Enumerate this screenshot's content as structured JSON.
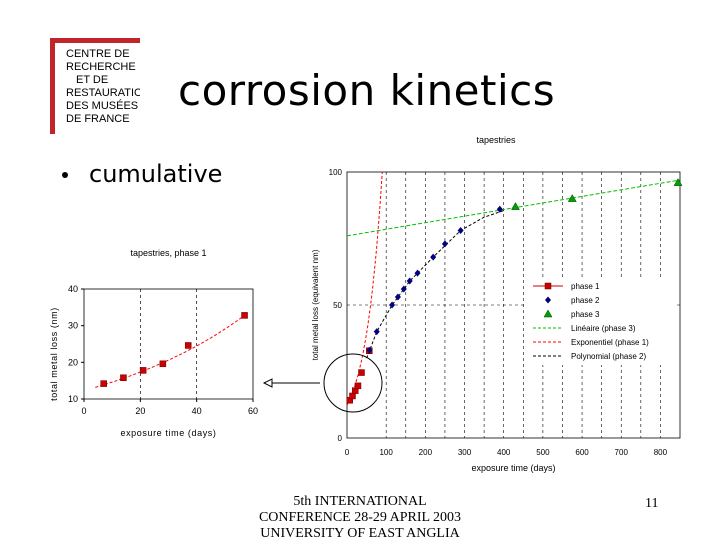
{
  "slide": {
    "title": "corrosion kinetics",
    "bullet": "cumulative",
    "footer": [
      "5th INTERNATIONAL",
      "CONFERENCE 28-29 APRIL 2003",
      "UNIVERSITY OF EAST ANGLIA"
    ],
    "page_number": "11",
    "logo_lines": [
      "CENTRE DE",
      "RECHERCHE",
      "ET DE",
      "RESTAURATION",
      "DES MUSÉES",
      "DE FRANCE"
    ],
    "colors": {
      "logo_red": "#C0252B",
      "phase1": "#CC0000",
      "phase2": "#000080",
      "phase3": "#00A000",
      "fit_linear": "#00C000",
      "fit_exp": "#FF0000",
      "fit_poly": "#000000"
    }
  },
  "chart_data": [
    {
      "type": "scatter",
      "title": "tapestries, phase 1",
      "xlabel": "exposure time (days)",
      "ylabel": "total metal loss (nm)",
      "xlim": [
        0,
        60
      ],
      "ylim": [
        10,
        40
      ],
      "xticks": [
        "0",
        "20",
        "40",
        "60"
      ],
      "yticks": [
        "10",
        "20",
        "30",
        "40"
      ],
      "grid": "vertical dashed",
      "series": [
        {
          "name": "",
          "marker": "square",
          "color": "#CC0000",
          "points": [
            [
              7,
              14.2
            ],
            [
              14,
              15.8
            ],
            [
              21,
              17.8
            ],
            [
              28,
              19.6
            ],
            [
              37,
              24.6
            ],
            [
              57,
              32.8
            ]
          ]
        }
      ],
      "fit": {
        "kind": "exponential",
        "style": "dashed",
        "color": "#FF0000",
        "a": 12.3,
        "b": 0.0172
      }
    },
    {
      "type": "scatter",
      "title": "tapestries",
      "xlabel": "exposure time (days)",
      "ylabel": "total metal loss (equivalent nm)",
      "xlim": [
        0,
        850
      ],
      "ylim": [
        0,
        100
      ],
      "xticks": [
        "0",
        "100",
        "200",
        "300",
        "400",
        "500",
        "600",
        "700",
        "800"
      ],
      "yticks": [
        "0",
        "50",
        "100"
      ],
      "grid": "vertical dashed",
      "legend_position": "right",
      "series": [
        {
          "name": "phase 1",
          "marker": "square",
          "color": "#CC0000",
          "points": [
            [
              7,
              14.2
            ],
            [
              14,
              15.8
            ],
            [
              21,
              17.8
            ],
            [
              28,
              19.6
            ],
            [
              37,
              24.6
            ],
            [
              57,
              32.8
            ]
          ]
        },
        {
          "name": "phase 2",
          "marker": "diamond",
          "color": "#000080",
          "points": [
            [
              57,
              33
            ],
            [
              76,
              40
            ],
            [
              115,
              50
            ],
            [
              130,
              53
            ],
            [
              145,
              56
            ],
            [
              160,
              59
            ],
            [
              180,
              62
            ],
            [
              220,
              68
            ],
            [
              250,
              73
            ],
            [
              290,
              78
            ],
            [
              390,
              86
            ]
          ]
        },
        {
          "name": "phase 3",
          "marker": "triangle",
          "color": "#00A000",
          "points": [
            [
              430,
              87
            ],
            [
              575,
              90
            ],
            [
              845,
              96
            ]
          ]
        }
      ],
      "fits": [
        {
          "name": "Linéaire (phase 3)",
          "style": "dashed",
          "color": "#00C000"
        },
        {
          "name": "Exponentiel (phase 1)",
          "style": "dashed",
          "color": "#FF0000"
        },
        {
          "name": "Polynomial (phase 2)",
          "style": "dashed",
          "color": "#000000"
        }
      ]
    }
  ]
}
